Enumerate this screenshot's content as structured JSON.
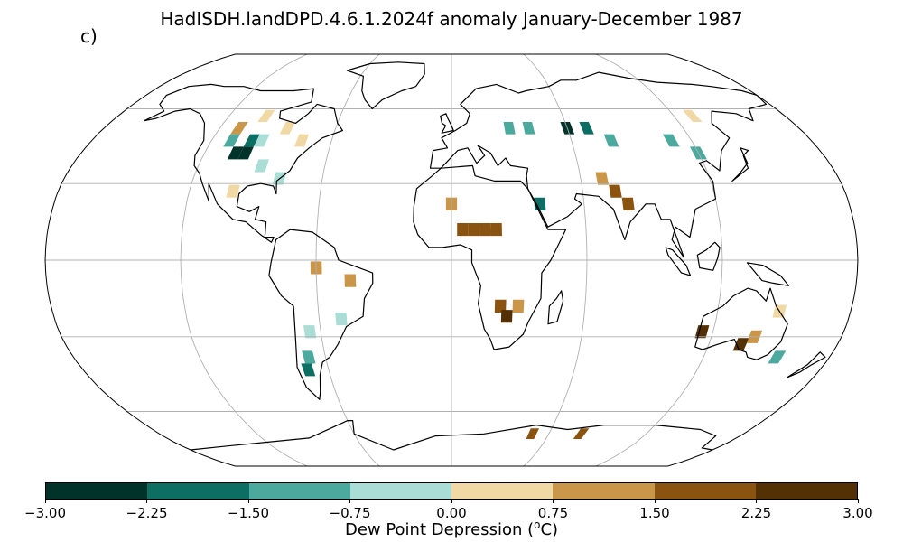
{
  "title": "HadISDH.landDPD.4.6.1.2024f anomaly January-December 1987",
  "panel_label": "c)",
  "colorbar": {
    "label_prefix": "Dew Point Depression (",
    "label_sup": "o",
    "label_suffix": "C)",
    "ticks": [
      "−3.00",
      "−2.25",
      "−1.50",
      "−0.75",
      "0.00",
      "0.75",
      "1.50",
      "2.25",
      "3.00"
    ],
    "tick_values": [
      -3.0,
      -2.25,
      -1.5,
      -0.75,
      0.0,
      0.75,
      1.5,
      2.25,
      3.0
    ],
    "colors": [
      "#01332b",
      "#0d6e64",
      "#4ca99d",
      "#a9ddd6",
      "#f0d9a4",
      "#c9964a",
      "#8a5310",
      "#543005"
    ]
  },
  "map_colors": {
    "ocean": "#ffffff",
    "graticule": "#b0b0b0",
    "coast": "#000000"
  },
  "chart_data": {
    "type": "heatmap",
    "projection": "Robinson",
    "grid_cell_degrees": 5,
    "value_range": [
      -3.0,
      3.0
    ],
    "cells": [
      {
        "lon": -105,
        "lat": 42,
        "value": -2.8
      },
      {
        "lon": -100,
        "lat": 42,
        "value": -2.4
      },
      {
        "lon": -100,
        "lat": 47,
        "value": -1.8
      },
      {
        "lon": -110,
        "lat": 47,
        "value": -1.1
      },
      {
        "lon": -95,
        "lat": 47,
        "value": -0.5
      },
      {
        "lon": -110,
        "lat": 52,
        "value": 1.0
      },
      {
        "lon": -100,
        "lat": 57,
        "value": 0.4
      },
      {
        "lon": -85,
        "lat": 52,
        "value": 0.4
      },
      {
        "lon": -75,
        "lat": 47,
        "value": 0.3
      },
      {
        "lon": -90,
        "lat": 37,
        "value": -0.4
      },
      {
        "lon": -80,
        "lat": 32,
        "value": -0.5
      },
      {
        "lon": -100,
        "lat": 27,
        "value": 0.3
      },
      {
        "lon": -60,
        "lat": -3,
        "value": 1.0
      },
      {
        "lon": -45,
        "lat": -8,
        "value": 1.0
      },
      {
        "lon": -50,
        "lat": -23,
        "value": -0.5
      },
      {
        "lon": -65,
        "lat": -28,
        "value": -0.6
      },
      {
        "lon": -68,
        "lat": -38,
        "value": -1.2
      },
      {
        "lon": -70,
        "lat": -43,
        "value": -1.6
      },
      {
        "lon": 0,
        "lat": 22,
        "value": 1.2
      },
      {
        "lon": 5,
        "lat": 12,
        "value": 1.8
      },
      {
        "lon": 10,
        "lat": 12,
        "value": 1.8
      },
      {
        "lon": 15,
        "lat": 12,
        "value": 1.8
      },
      {
        "lon": 20,
        "lat": 12,
        "value": 1.8
      },
      {
        "lon": 22,
        "lat": -18,
        "value": 2.0
      },
      {
        "lon": 25,
        "lat": -22,
        "value": 2.6
      },
      {
        "lon": 30,
        "lat": -18,
        "value": 1.2
      },
      {
        "lon": 30,
        "lat": 52,
        "value": -0.9
      },
      {
        "lon": 40,
        "lat": 52,
        "value": -1.2
      },
      {
        "lon": 60,
        "lat": 52,
        "value": -2.4
      },
      {
        "lon": 70,
        "lat": 52,
        "value": -1.8
      },
      {
        "lon": 80,
        "lat": 47,
        "value": -1.5
      },
      {
        "lon": 40,
        "lat": 22,
        "value": -2.2
      },
      {
        "lon": 75,
        "lat": 27,
        "value": 1.6
      },
      {
        "lon": 80,
        "lat": 22,
        "value": 2.0
      },
      {
        "lon": 70,
        "lat": 32,
        "value": 1.0
      },
      {
        "lon": 110,
        "lat": 47,
        "value": -1.0
      },
      {
        "lon": 120,
        "lat": 42,
        "value": -1.4
      },
      {
        "lon": 130,
        "lat": 57,
        "value": 0.4
      },
      {
        "lon": 115,
        "lat": -28,
        "value": 2.6
      },
      {
        "lon": 135,
        "lat": -33,
        "value": 2.6
      },
      {
        "lon": 140,
        "lat": -30,
        "value": 1.2
      },
      {
        "lon": 148,
        "lat": -20,
        "value": 0.5
      },
      {
        "lon": 155,
        "lat": -38,
        "value": -1.0
      },
      {
        "lon": 50,
        "lat": -70,
        "value": 1.8
      },
      {
        "lon": 80,
        "lat": -70,
        "value": 1.8
      }
    ]
  }
}
